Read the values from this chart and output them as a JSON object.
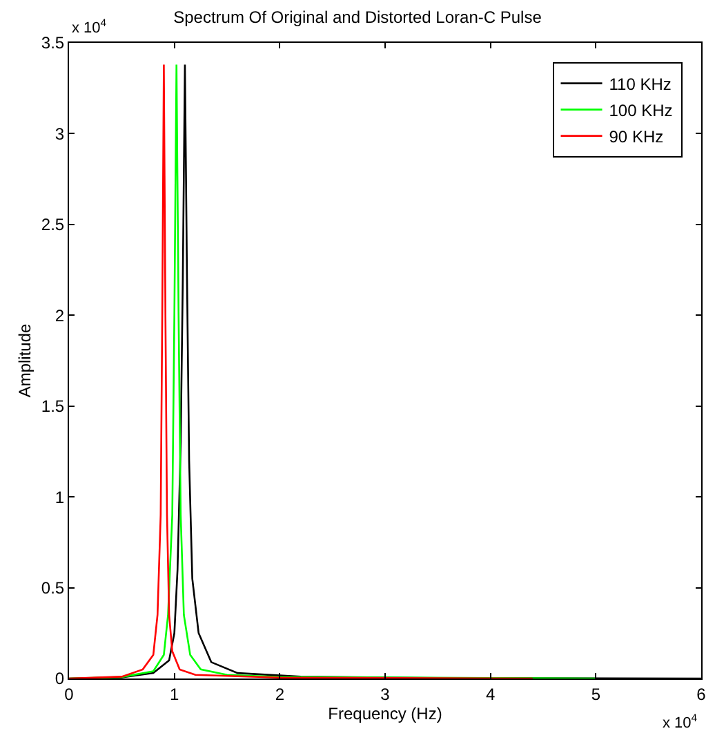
{
  "chart_data": {
    "type": "line",
    "title": "Spectrum Of Original and Distorted Loran-C Pulse",
    "xlabel": "Frequency (Hz)",
    "ylabel": "Amplitude",
    "series": [
      {
        "name": "110 KHz",
        "color": "#000000",
        "x": [
          0,
          0.5,
          0.8,
          0.95,
          1.0,
          1.03,
          1.06,
          1.08,
          1.1,
          1.12,
          1.14,
          1.17,
          1.23,
          1.35,
          1.6,
          2.2,
          3.5,
          6.0
        ],
        "values": [
          0,
          0.006,
          0.03,
          0.1,
          0.25,
          0.6,
          1.3,
          2.2,
          3.38,
          2.2,
          1.2,
          0.55,
          0.25,
          0.09,
          0.03,
          0.01,
          0.003,
          0
        ]
      },
      {
        "name": "100 KHz",
        "color": "#00ff00",
        "x": [
          0,
          0.5,
          0.8,
          0.9,
          0.94,
          0.98,
          1.0,
          1.02,
          1.04,
          1.06,
          1.09,
          1.15,
          1.25,
          1.5,
          2.0,
          5.0
        ],
        "values": [
          0,
          0.008,
          0.04,
          0.13,
          0.35,
          0.9,
          2.0,
          3.38,
          2.0,
          0.9,
          0.35,
          0.13,
          0.05,
          0.02,
          0.008,
          0
        ]
      },
      {
        "name": "90 KHz",
        "color": "#ff0000",
        "x": [
          0,
          0.5,
          0.7,
          0.8,
          0.84,
          0.87,
          0.885,
          0.9,
          0.915,
          0.93,
          0.95,
          0.98,
          1.05,
          1.2,
          2.0,
          4.4
        ],
        "values": [
          0,
          0.01,
          0.05,
          0.13,
          0.35,
          0.9,
          2.0,
          3.38,
          2.0,
          0.9,
          0.35,
          0.15,
          0.05,
          0.02,
          0.005,
          0
        ]
      }
    ],
    "xlim": [
      0,
      6
    ],
    "ylim": [
      0,
      3.5
    ],
    "xticks": [
      0,
      1,
      2,
      3,
      4,
      5,
      6
    ],
    "yticks": [
      0,
      0.5,
      1,
      1.5,
      2,
      2.5,
      3,
      3.5
    ],
    "annotations": [
      "x 10$^{4}$",
      "x 10$^{4}$"
    ],
    "legend": "top right",
    "marker": "none",
    "line_style": "solid"
  }
}
